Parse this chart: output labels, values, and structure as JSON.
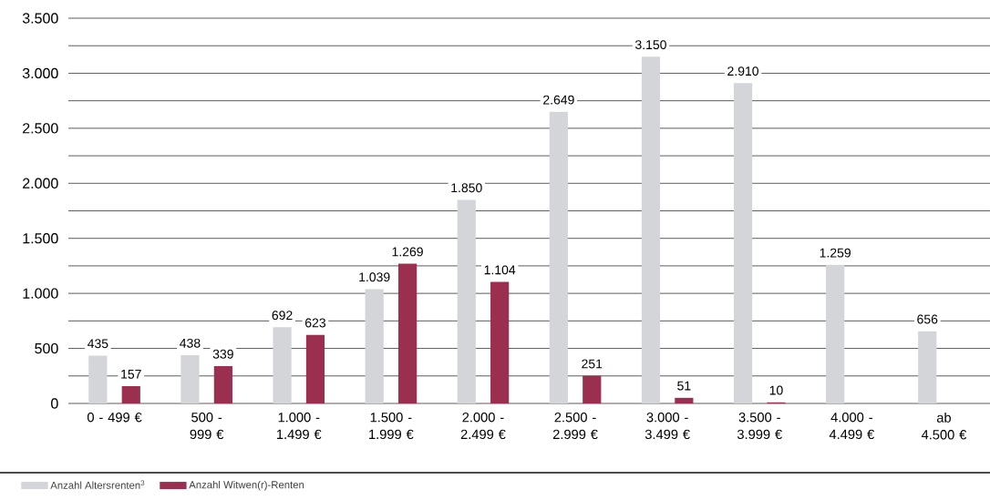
{
  "chart_data": {
    "type": "bar",
    "categories": [
      "0 - 499 €",
      "500 - 999 €",
      "1.000 - 1.499 €",
      "1.500 - 1.999 €",
      "2.000 - 2.499 €",
      "2.500 - 2.999 €",
      "3.000 - 3.499 €",
      "3.500 - 3.999 €",
      "4.000 - 4.499 €",
      "ab 4.500 €"
    ],
    "series": [
      {
        "name": "Anzahl Altersrenten$^{3}$",
        "color": "#d4d5d9",
        "values": [
          435,
          438,
          692,
          1039,
          1850,
          2649,
          3150,
          2910,
          1259,
          656
        ],
        "value_labels": [
          "435",
          "438",
          "692",
          "1.039",
          "1.850",
          "2.649",
          "3.150",
          "2.910",
          "1.259",
          "656"
        ]
      },
      {
        "name": "Anzahl Witwen(r)-Renten",
        "color": "#9b2f50",
        "values": [
          157,
          339,
          623,
          1269,
          1104,
          251,
          51,
          10,
          null,
          null
        ],
        "value_labels": [
          "157",
          "339",
          "623",
          "1.269",
          "1.104",
          "251",
          "51",
          "10",
          null,
          null
        ]
      }
    ],
    "ylim": [
      0,
      3500
    ],
    "yticks": [
      0,
      {
        "value": 250,
        "label": null
      },
      500,
      {
        "value": 750,
        "label": null
      },
      {
        "value": 1000,
        "label": "1.000"
      },
      {
        "value": 1250,
        "label": null
      },
      {
        "value": 1500,
        "label": "1.500"
      },
      {
        "value": 1750,
        "label": null
      },
      {
        "value": 2000,
        "label": "2.000"
      },
      {
        "value": 2250,
        "label": null
      },
      {
        "value": 2500,
        "label": "2.500"
      },
      {
        "value": 2750,
        "label": null
      },
      {
        "value": 3000,
        "label": "3.000"
      },
      {
        "value": 3250,
        "label": null
      },
      {
        "value": 3500,
        "label": "3.500"
      }
    ],
    "grid": "y",
    "legend": "bottom left"
  }
}
